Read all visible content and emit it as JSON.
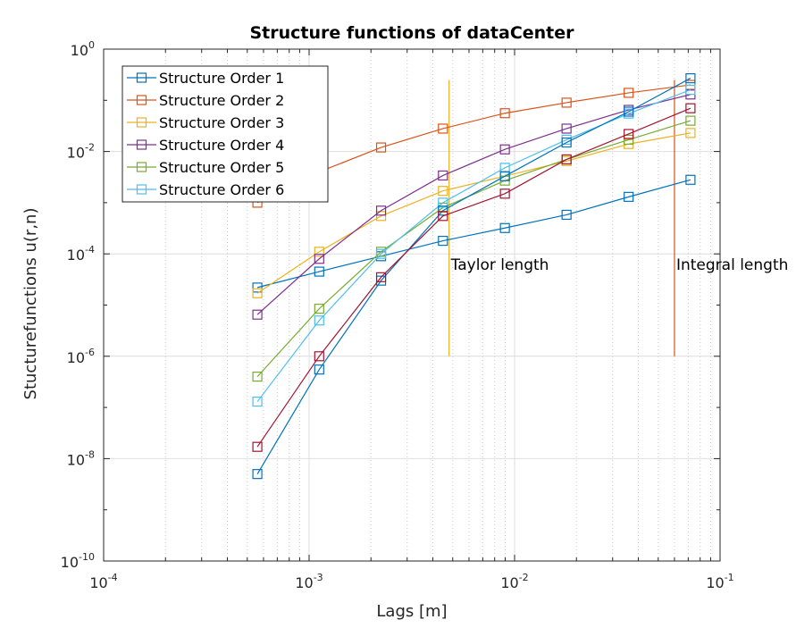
{
  "chart_data": {
    "type": "line",
    "title": "Structure functions  of dataCenter",
    "xlabel": "Lags [m]",
    "ylabel": "Stucturefunctions u(r,n)",
    "xscale": "log",
    "yscale": "log",
    "xlim": [
      0.0001,
      0.1
    ],
    "ylim": [
      1e-10,
      1
    ],
    "grid": true,
    "legend_position": "top-left",
    "x_ticks": [
      {
        "base": "10",
        "exp": "-4"
      },
      {
        "base": "10",
        "exp": "-3"
      },
      {
        "base": "10",
        "exp": "-2"
      },
      {
        "base": "10",
        "exp": "-1"
      }
    ],
    "y_ticks": [
      {
        "base": "10",
        "exp": "-10"
      },
      {
        "base": "10",
        "exp": "-8"
      },
      {
        "base": "10",
        "exp": "-6"
      },
      {
        "base": "10",
        "exp": "-4"
      },
      {
        "base": "10",
        "exp": "-2"
      },
      {
        "base": "10",
        "exp": "0"
      }
    ],
    "x": [
      0.00056,
      0.00112,
      0.00224,
      0.00448,
      0.00897,
      0.0179,
      0.0359,
      0.0718
    ],
    "series": [
      {
        "name": "Structure Order 1",
        "color": "#0072BD",
        "values": [
          2.2e-05,
          4.5e-05,
          9e-05,
          0.00018,
          0.00032,
          0.00058,
          0.0013,
          0.0028
        ]
      },
      {
        "name": "Structure Order 2",
        "color": "#D95319",
        "values": [
          0.001,
          0.004,
          0.012,
          0.028,
          0.056,
          0.09,
          0.14,
          0.2
        ]
      },
      {
        "name": "Structure Order 3",
        "color": "#EDB120",
        "values": [
          1.7e-05,
          0.00011,
          0.00055,
          0.0017,
          0.0033,
          0.0065,
          0.014,
          0.023
        ]
      },
      {
        "name": "Structure Order 4",
        "color": "#7E2F8E",
        "values": [
          6.5e-06,
          8e-05,
          0.0007,
          0.0034,
          0.011,
          0.028,
          0.065,
          0.13
        ]
      },
      {
        "name": "Structure Order 5",
        "color": "#77AC30",
        "values": [
          4e-07,
          8.5e-06,
          0.00011,
          0.0008,
          0.0027,
          0.007,
          0.017,
          0.04
        ]
      },
      {
        "name": "Structure Order 6",
        "color": "#4DBEEE",
        "values": [
          1.3e-07,
          5e-06,
          0.0001,
          0.001,
          0.0048,
          0.017,
          0.055,
          0.16
        ]
      },
      {
        "name": "",
        "color": "#0072BD",
        "values": [
          5e-09,
          5.5e-07,
          3e-05,
          0.0007,
          0.0033,
          0.015,
          0.06,
          0.27
        ]
      },
      {
        "name": "",
        "color": "#A2142F",
        "values": [
          1.7e-08,
          1e-06,
          3.5e-05,
          0.00055,
          0.0015,
          0.007,
          0.022,
          0.07
        ]
      }
    ],
    "annotations": [
      {
        "text": "Taylor length",
        "x": 0.0048,
        "color": "#EDB120",
        "y_from": 1e-06,
        "y_to": 0.25
      },
      {
        "text": "Integral length",
        "x": 0.06,
        "color": "#D95319",
        "y_from": 1e-06,
        "y_to": 0.25
      }
    ]
  }
}
